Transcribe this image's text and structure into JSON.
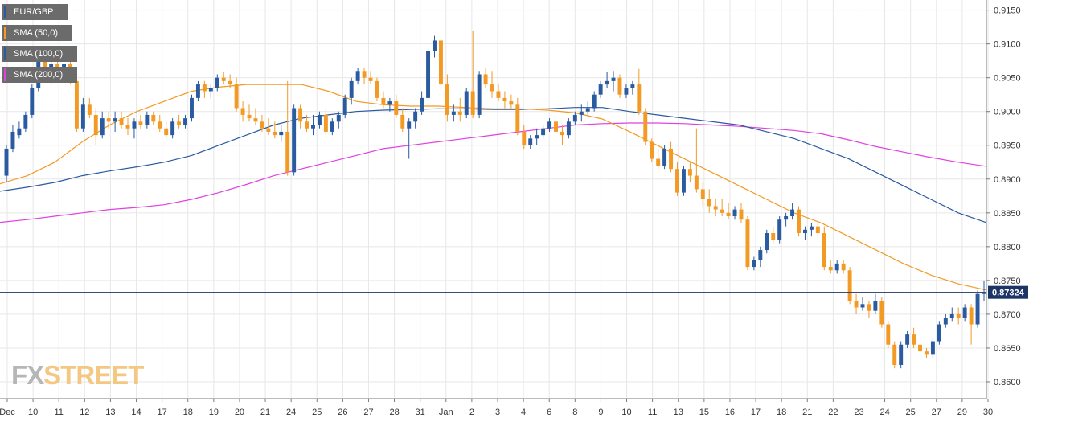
{
  "legend": [
    {
      "label": "EUR/GBP",
      "color": "#2a5aa0"
    },
    {
      "label": "SMA (50,0)",
      "color": "#f29a24"
    },
    {
      "label": "SMA (100,0)",
      "color": "#2a5aa0"
    },
    {
      "label": "SMA (200,0)",
      "color": "#e040e0"
    }
  ],
  "logo": {
    "part1": "FX",
    "part2": "STREET"
  },
  "colors": {
    "bull": "#2a5aa0",
    "bear": "#f29a24",
    "sma50": "#f29a24",
    "sma100": "#2a5aa0",
    "sma200": "#e040e0",
    "grid": "#e7e7e7",
    "axis": "#7a7a7a",
    "price_line": "#1c3566",
    "label_bg": "#1c3566"
  },
  "chart_data": {
    "type": "candlestick",
    "title": "",
    "xlabel": "",
    "ylabel": "",
    "ylim": [
      0.8575,
      0.9165
    ],
    "y_ticks": [
      "0.9150",
      "0.9100",
      "0.9050",
      "0.9000",
      "0.8950",
      "0.8900",
      "0.8850",
      "0.8800",
      "0.8750",
      "0.8700",
      "0.8650",
      "0.8600"
    ],
    "x_tick_labels": [
      "Dec",
      "10",
      "11",
      "12",
      "13",
      "14",
      "17",
      "18",
      "19",
      "20",
      "21",
      "24",
      "25",
      "26",
      "27",
      "28",
      "31",
      "Jan",
      "2",
      "3",
      "4",
      "6",
      "8",
      "9",
      "10",
      "11",
      "13",
      "15",
      "16",
      "17",
      "18",
      "21",
      "22",
      "23",
      "24",
      "25",
      "27",
      "29",
      "30"
    ],
    "current_price": "0.87324",
    "grid": true,
    "legend_position": "top-left",
    "candles": [
      [
        0.8905,
        0.895,
        0.8895,
        0.8945
      ],
      [
        0.8945,
        0.898,
        0.894,
        0.897
      ],
      [
        0.8965,
        0.8985,
        0.896,
        0.8975
      ],
      [
        0.8975,
        0.9,
        0.897,
        0.8995
      ],
      [
        0.8995,
        0.904,
        0.899,
        0.9035
      ],
      [
        0.9035,
        0.908,
        0.903,
        0.9075
      ],
      [
        0.9075,
        0.908,
        0.9045,
        0.905
      ],
      [
        0.905,
        0.908,
        0.904,
        0.907
      ],
      [
        0.907,
        0.908,
        0.9055,
        0.906
      ],
      [
        0.906,
        0.9075,
        0.905,
        0.907
      ],
      [
        0.907,
        0.9078,
        0.904,
        0.9045
      ],
      [
        0.9045,
        0.905,
        0.897,
        0.8975
      ],
      [
        0.8975,
        0.902,
        0.897,
        0.901
      ],
      [
        0.901,
        0.902,
        0.899,
        0.8995
      ],
      [
        0.8995,
        0.9005,
        0.895,
        0.8965
      ],
      [
        0.8965,
        0.9,
        0.896,
        0.899
      ],
      [
        0.899,
        0.9,
        0.8975,
        0.8985
      ],
      [
        0.8985,
        0.9,
        0.897,
        0.899
      ],
      [
        0.899,
        0.9,
        0.8975,
        0.898
      ],
      [
        0.898,
        0.899,
        0.8965,
        0.8975
      ],
      [
        0.8975,
        0.899,
        0.896,
        0.8985
      ],
      [
        0.8985,
        0.8995,
        0.8975,
        0.898
      ],
      [
        0.898,
        0.9,
        0.8975,
        0.8995
      ],
      [
        0.8995,
        0.9,
        0.898,
        0.8985
      ],
      [
        0.8985,
        0.8995,
        0.897,
        0.8975
      ],
      [
        0.8975,
        0.8985,
        0.896,
        0.8965
      ],
      [
        0.8965,
        0.899,
        0.896,
        0.8985
      ],
      [
        0.8985,
        0.8995,
        0.8975,
        0.898
      ],
      [
        0.898,
        0.8995,
        0.8975,
        0.899
      ],
      [
        0.899,
        0.9025,
        0.8985,
        0.902
      ],
      [
        0.902,
        0.9045,
        0.9015,
        0.904
      ],
      [
        0.904,
        0.9045,
        0.902,
        0.903
      ],
      [
        0.903,
        0.904,
        0.902,
        0.9035
      ],
      [
        0.9035,
        0.9055,
        0.903,
        0.905
      ],
      [
        0.905,
        0.9058,
        0.904,
        0.9045
      ],
      [
        0.9045,
        0.9055,
        0.9035,
        0.904
      ],
      [
        0.904,
        0.905,
        0.9,
        0.9005
      ],
      [
        0.9005,
        0.9015,
        0.8985,
        0.8995
      ],
      [
        0.8995,
        0.901,
        0.8985,
        0.899
      ],
      [
        0.899,
        0.9005,
        0.898,
        0.8985
      ],
      [
        0.8985,
        0.8995,
        0.897,
        0.8975
      ],
      [
        0.8975,
        0.899,
        0.8965,
        0.897
      ],
      [
        0.897,
        0.8985,
        0.896,
        0.8965
      ],
      [
        0.8965,
        0.898,
        0.8955,
        0.897
      ],
      [
        0.897,
        0.9045,
        0.8905,
        0.891
      ],
      [
        0.891,
        0.901,
        0.8905,
        0.9005
      ],
      [
        0.9005,
        0.901,
        0.8975,
        0.8985
      ],
      [
        0.8985,
        0.8995,
        0.897,
        0.8975
      ],
      [
        0.8975,
        0.8995,
        0.8965,
        0.898
      ],
      [
        0.898,
        0.9,
        0.8975,
        0.8995
      ],
      [
        0.8995,
        0.9005,
        0.8965,
        0.897
      ],
      [
        0.897,
        0.899,
        0.8965,
        0.8985
      ],
      [
        0.8985,
        0.9,
        0.8975,
        0.8995
      ],
      [
        0.8995,
        0.9025,
        0.899,
        0.902
      ],
      [
        0.902,
        0.905,
        0.901,
        0.9045
      ],
      [
        0.9045,
        0.9065,
        0.904,
        0.906
      ],
      [
        0.906,
        0.9065,
        0.904,
        0.905
      ],
      [
        0.905,
        0.906,
        0.904,
        0.9045
      ],
      [
        0.9045,
        0.905,
        0.9015,
        0.902
      ],
      [
        0.902,
        0.903,
        0.9005,
        0.901
      ],
      [
        0.901,
        0.902,
        0.9,
        0.9015
      ],
      [
        0.9015,
        0.9025,
        0.899,
        0.8995
      ],
      [
        0.8995,
        0.9005,
        0.897,
        0.8975
      ],
      [
        0.8975,
        0.899,
        0.893,
        0.8985
      ],
      [
        0.8985,
        0.9005,
        0.8975,
        0.9
      ],
      [
        0.9,
        0.903,
        0.8995,
        0.902
      ],
      [
        0.902,
        0.9095,
        0.9015,
        0.909
      ],
      [
        0.909,
        0.9112,
        0.908,
        0.9105
      ],
      [
        0.9105,
        0.911,
        0.903,
        0.904
      ],
      [
        0.904,
        0.9055,
        0.8985,
        0.8995
      ],
      [
        0.8995,
        0.901,
        0.8985,
        0.9
      ],
      [
        0.9,
        0.902,
        0.8985,
        0.8995
      ],
      [
        0.8995,
        0.9035,
        0.899,
        0.903
      ],
      [
        0.903,
        0.912,
        0.899,
        0.8995
      ],
      [
        0.8995,
        0.906,
        0.899,
        0.9055
      ],
      [
        0.9055,
        0.9065,
        0.9035,
        0.904
      ],
      [
        0.904,
        0.906,
        0.902,
        0.903
      ],
      [
        0.903,
        0.904,
        0.9015,
        0.902
      ],
      [
        0.902,
        0.903,
        0.9005,
        0.9015
      ],
      [
        0.9015,
        0.9025,
        0.9005,
        0.901
      ],
      [
        0.901,
        0.902,
        0.8965,
        0.897
      ],
      [
        0.897,
        0.898,
        0.8945,
        0.895
      ],
      [
        0.895,
        0.8965,
        0.8945,
        0.896
      ],
      [
        0.896,
        0.8975,
        0.895,
        0.8965
      ],
      [
        0.8965,
        0.898,
        0.896,
        0.8975
      ],
      [
        0.8975,
        0.899,
        0.897,
        0.8985
      ],
      [
        0.8985,
        0.8995,
        0.8965,
        0.897
      ],
      [
        0.897,
        0.898,
        0.895,
        0.8965
      ],
      [
        0.8965,
        0.899,
        0.896,
        0.8985
      ],
      [
        0.8985,
        0.9,
        0.898,
        0.8995
      ],
      [
        0.8995,
        0.901,
        0.8985,
        0.9
      ],
      [
        0.9,
        0.9015,
        0.8995,
        0.9005
      ],
      [
        0.9005,
        0.903,
        0.9,
        0.9025
      ],
      [
        0.9025,
        0.9045,
        0.902,
        0.904
      ],
      [
        0.904,
        0.9058,
        0.9035,
        0.9045
      ],
      [
        0.9045,
        0.906,
        0.903,
        0.905
      ],
      [
        0.905,
        0.9055,
        0.902,
        0.9025
      ],
      [
        0.9025,
        0.904,
        0.902,
        0.9035
      ],
      [
        0.9035,
        0.9045,
        0.9025,
        0.904
      ],
      [
        0.904,
        0.9063,
        0.8995,
        0.9
      ],
      [
        0.9,
        0.9005,
        0.895,
        0.8955
      ],
      [
        0.8955,
        0.896,
        0.8925,
        0.893
      ],
      [
        0.893,
        0.8945,
        0.8915,
        0.892
      ],
      [
        0.892,
        0.895,
        0.8915,
        0.8945
      ],
      [
        0.8945,
        0.8955,
        0.891,
        0.8915
      ],
      [
        0.8915,
        0.8925,
        0.8875,
        0.888
      ],
      [
        0.888,
        0.892,
        0.8875,
        0.8915
      ],
      [
        0.8915,
        0.8925,
        0.8895,
        0.8905
      ],
      [
        0.8905,
        0.8975,
        0.888,
        0.8885
      ],
      [
        0.8885,
        0.8895,
        0.886,
        0.887
      ],
      [
        0.887,
        0.8885,
        0.885,
        0.886
      ],
      [
        0.886,
        0.887,
        0.8845,
        0.8855
      ],
      [
        0.8855,
        0.887,
        0.8845,
        0.885
      ],
      [
        0.885,
        0.8865,
        0.884,
        0.8845
      ],
      [
        0.8845,
        0.886,
        0.884,
        0.8855
      ],
      [
        0.8855,
        0.8865,
        0.8835,
        0.884
      ],
      [
        0.884,
        0.8845,
        0.8765,
        0.877
      ],
      [
        0.877,
        0.8785,
        0.8765,
        0.878
      ],
      [
        0.878,
        0.88,
        0.877,
        0.8795
      ],
      [
        0.8795,
        0.8825,
        0.879,
        0.882
      ],
      [
        0.882,
        0.883,
        0.8805,
        0.881
      ],
      [
        0.881,
        0.8845,
        0.8805,
        0.884
      ],
      [
        0.884,
        0.885,
        0.883,
        0.8845
      ],
      [
        0.8845,
        0.8865,
        0.884,
        0.8855
      ],
      [
        0.8855,
        0.886,
        0.8815,
        0.882
      ],
      [
        0.882,
        0.883,
        0.881,
        0.8825
      ],
      [
        0.8825,
        0.8835,
        0.8815,
        0.883
      ],
      [
        0.883,
        0.8835,
        0.8815,
        0.882
      ],
      [
        0.882,
        0.883,
        0.8765,
        0.877
      ],
      [
        0.877,
        0.878,
        0.876,
        0.8765
      ],
      [
        0.8765,
        0.878,
        0.876,
        0.8775
      ],
      [
        0.8775,
        0.878,
        0.876,
        0.8765
      ],
      [
        0.8765,
        0.877,
        0.8715,
        0.872
      ],
      [
        0.872,
        0.873,
        0.87,
        0.871
      ],
      [
        0.871,
        0.8725,
        0.8705,
        0.8715
      ],
      [
        0.8715,
        0.872,
        0.8695,
        0.8705
      ],
      [
        0.8705,
        0.873,
        0.87,
        0.872
      ],
      [
        0.872,
        0.8725,
        0.868,
        0.8685
      ],
      [
        0.8685,
        0.869,
        0.865,
        0.8655
      ],
      [
        0.8655,
        0.866,
        0.862,
        0.8625
      ],
      [
        0.8625,
        0.866,
        0.862,
        0.8655
      ],
      [
        0.8655,
        0.8675,
        0.865,
        0.867
      ],
      [
        0.867,
        0.868,
        0.865,
        0.8655
      ],
      [
        0.8655,
        0.8665,
        0.864,
        0.8645
      ],
      [
        0.8645,
        0.865,
        0.8635,
        0.864
      ],
      [
        0.864,
        0.8665,
        0.8635,
        0.866
      ],
      [
        0.866,
        0.869,
        0.8655,
        0.8685
      ],
      [
        0.8685,
        0.87,
        0.868,
        0.8695
      ],
      [
        0.8695,
        0.871,
        0.869,
        0.87
      ],
      [
        0.87,
        0.871,
        0.8685,
        0.8695
      ],
      [
        0.8695,
        0.8715,
        0.869,
        0.871
      ],
      [
        0.871,
        0.8715,
        0.8655,
        0.8685
      ],
      [
        0.8685,
        0.8735,
        0.868,
        0.873
      ],
      [
        0.873,
        0.875,
        0.872,
        0.8732
      ]
    ],
    "series": [
      {
        "name": "SMA (50,0)",
        "values": [
          0.8893,
          0.8905,
          0.8925,
          0.8955,
          0.898,
          0.9,
          0.9015,
          0.903,
          0.9036,
          0.904,
          0.904,
          0.904,
          0.903,
          0.9015,
          0.901,
          0.9008,
          0.9008,
          0.9006,
          0.9004,
          0.9004,
          0.9002,
          0.8998,
          0.8989,
          0.897,
          0.895,
          0.893,
          0.891,
          0.889,
          0.887,
          0.885,
          0.8835,
          0.8815,
          0.8795,
          0.8775,
          0.8758,
          0.8745,
          0.8736
        ]
      },
      {
        "name": "SMA (100,0)",
        "values": [
          0.8882,
          0.8888,
          0.8895,
          0.8905,
          0.8912,
          0.8918,
          0.8925,
          0.8935,
          0.895,
          0.8965,
          0.898,
          0.899,
          0.8995,
          0.9,
          0.9002,
          0.9003,
          0.9004,
          0.9004,
          0.9003,
          0.9003,
          0.9004,
          0.9006,
          0.9006,
          0.9,
          0.8995,
          0.899,
          0.8985,
          0.898,
          0.897,
          0.896,
          0.8945,
          0.893,
          0.891,
          0.889,
          0.887,
          0.885,
          0.8836
        ]
      },
      {
        "name": "SMA (200,0)",
        "values": [
          0.8836,
          0.884,
          0.8845,
          0.885,
          0.8855,
          0.8858,
          0.8862,
          0.887,
          0.888,
          0.8892,
          0.8905,
          0.8915,
          0.8925,
          0.8935,
          0.8945,
          0.895,
          0.8955,
          0.896,
          0.8965,
          0.897,
          0.8975,
          0.898,
          0.8982,
          0.8983,
          0.8983,
          0.8982,
          0.898,
          0.8978,
          0.8975,
          0.8972,
          0.8967,
          0.8958,
          0.8948,
          0.894,
          0.8932,
          0.8925,
          0.8919
        ]
      }
    ]
  }
}
